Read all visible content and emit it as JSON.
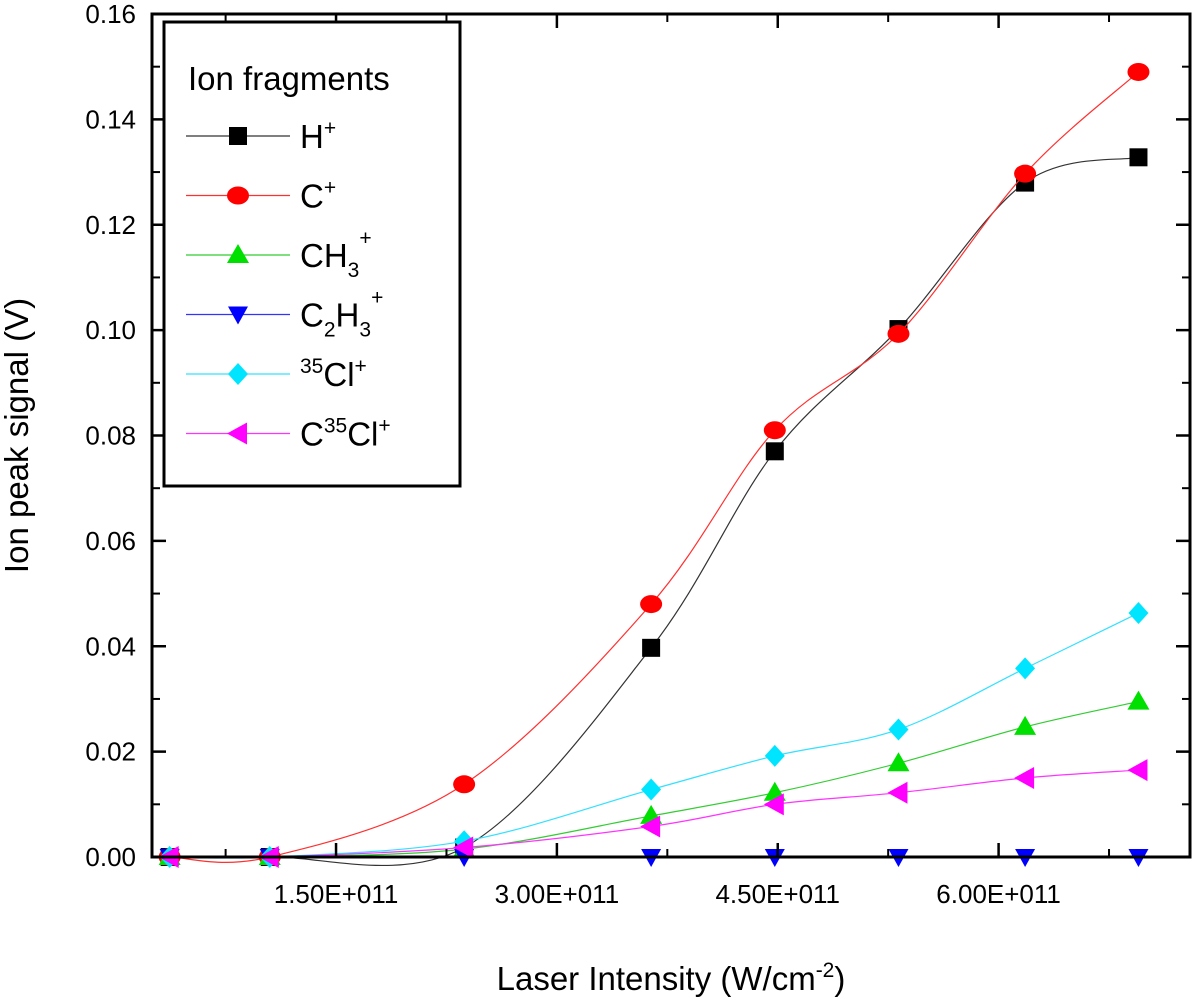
{
  "chart_data": {
    "type": "line",
    "title": "",
    "xlabel": "Laser Intensity (W/cm",
    "xlabel_sup": "-2",
    "xlabel_end": ")",
    "ylabel": "Ion peak signal (V)",
    "xlim": [
      25000000000,
      730000000000
    ],
    "ylim": [
      0,
      0.16
    ],
    "x_ticks": [
      150000000000,
      300000000000,
      450000000000,
      600000000000
    ],
    "x_tick_labels": [
      "1.50E+011",
      "3.00E+011",
      "4.50E+011",
      "6.00E+011"
    ],
    "y_ticks": [
      0,
      0.02,
      0.04,
      0.06,
      0.08,
      0.1,
      0.12,
      0.14,
      0.16
    ],
    "y_tick_labels": [
      "0.00",
      "0.02",
      "0.04",
      "0.06",
      "0.08",
      "0.10",
      "0.12",
      "0.14",
      "0.16"
    ],
    "x": [
      37000000000,
      105000000000,
      237000000000,
      364000000000,
      448000000000,
      532000000000,
      618000000000,
      695000000000
    ],
    "legend": {
      "title": "Ion fragments",
      "placement": "top-left"
    },
    "series": [
      {
        "name": "H+",
        "base": "H",
        "sup": "+",
        "color": "#000000",
        "line_color": "#333333",
        "marker": "square",
        "values": [
          0,
          0,
          0.0018,
          0.0397,
          0.077,
          0.1002,
          0.128,
          0.1328
        ]
      },
      {
        "name": "C+",
        "base": "C",
        "sup": "+",
        "color": "#ff0000",
        "line_color": "#ff3030",
        "marker": "circle",
        "values": [
          0,
          0,
          0.0138,
          0.048,
          0.081,
          0.0993,
          0.1297,
          0.149
        ]
      },
      {
        "name": "CH3+",
        "base": "CH",
        "sub": "3",
        "sup": "+",
        "color": "#00e000",
        "line_color": "#33cc33",
        "marker": "triangle-up",
        "values": [
          0,
          0,
          0.0015,
          0.0078,
          0.0122,
          0.0178,
          0.0247,
          0.0295
        ]
      },
      {
        "name": "C2H3+",
        "base": "C",
        "sub": "2",
        "base2": "H",
        "sub2": "3",
        "sup": "+",
        "color": "#0000ff",
        "line_color": "#3333ff",
        "marker": "triangle-down",
        "values": [
          0,
          0,
          0,
          0,
          0,
          0,
          0,
          0
        ]
      },
      {
        "name": "35Cl+",
        "pre_sup": "35",
        "base": "Cl",
        "sup": "+",
        "color": "#00e5ff",
        "line_color": "#33e0ff",
        "marker": "diamond",
        "values": [
          0,
          0,
          0.003,
          0.0128,
          0.0192,
          0.0242,
          0.0358,
          0.0463
        ]
      },
      {
        "name": "C35Cl+",
        "base": "C",
        "mid_sup": "35",
        "base2": "Cl",
        "sup": "+",
        "color": "#ff00ff",
        "line_color": "#ff33ff",
        "marker": "triangle-left",
        "values": [
          0,
          0,
          0.0018,
          0.0058,
          0.01,
          0.0122,
          0.015,
          0.0165
        ]
      }
    ]
  }
}
